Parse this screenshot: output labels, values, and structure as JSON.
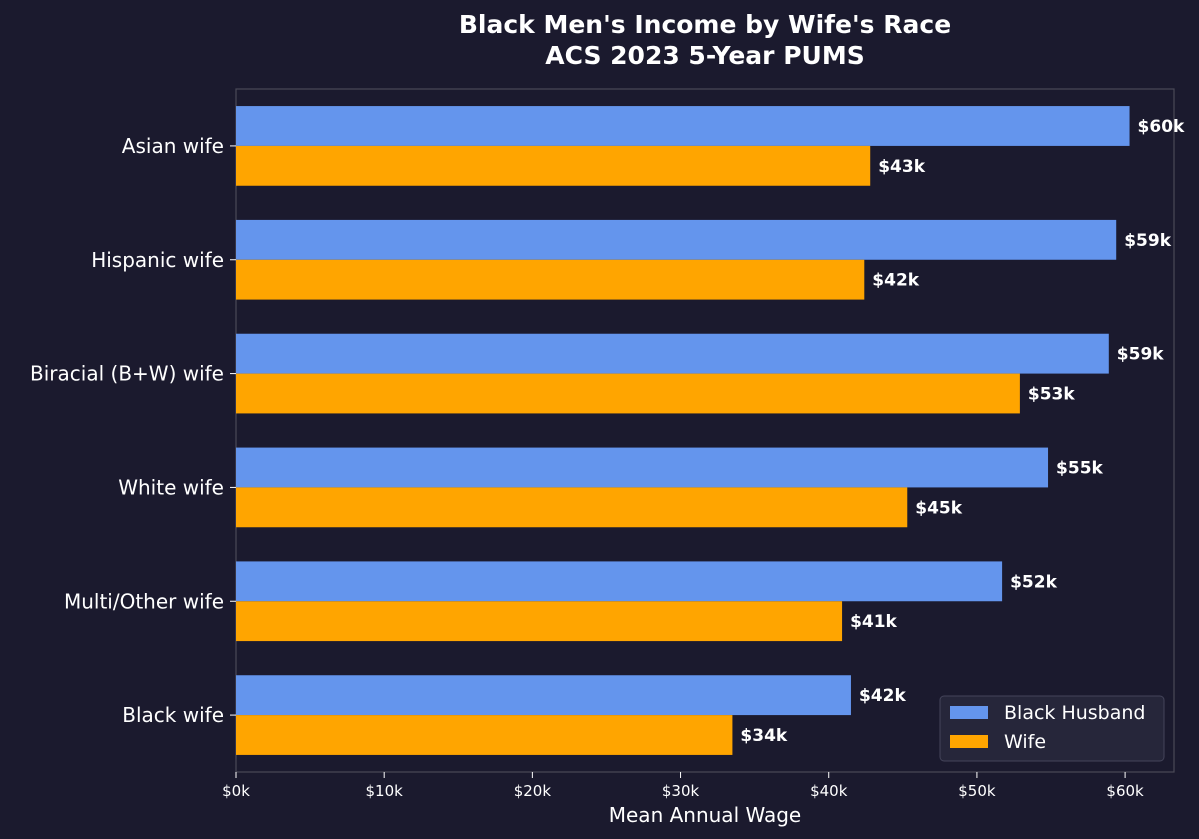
{
  "chart_data": {
    "type": "bar",
    "orientation": "horizontal",
    "title_lines": [
      "Black Men's Income by Wife's Race",
      "ACS 2023 5-Year PUMS"
    ],
    "xlabel": "Mean Annual Wage",
    "ylabel": "",
    "categories": [
      "Asian wife",
      "Hispanic wife",
      "Biracial (B+W) wife",
      "White wife",
      "Multi/Other wife",
      "Black wife"
    ],
    "series": [
      {
        "name": "Black Husband",
        "color": "#6495ED",
        "values": [
          60300,
          59400,
          58900,
          54800,
          51700,
          41500
        ],
        "labels": [
          "$60k",
          "$59k",
          "$59k",
          "$55k",
          "$52k",
          "$42k"
        ]
      },
      {
        "name": "Wife",
        "color": "#FFA500",
        "values": [
          42800,
          42400,
          52900,
          45300,
          40900,
          33500
        ],
        "labels": [
          "$43k",
          "$42k",
          "$53k",
          "$45k",
          "$41k",
          "$34k"
        ]
      }
    ],
    "xlim": [
      0,
      63300
    ],
    "xticks": [
      0,
      10000,
      20000,
      30000,
      40000,
      50000,
      60000
    ],
    "xtick_labels": [
      "$0k",
      "$10k",
      "$20k",
      "$30k",
      "$40k",
      "$50k",
      "$60k"
    ],
    "grid": false,
    "legend_position": "lower-right",
    "background_color": "#1b1a2e",
    "legend_background": "#26263a"
  }
}
